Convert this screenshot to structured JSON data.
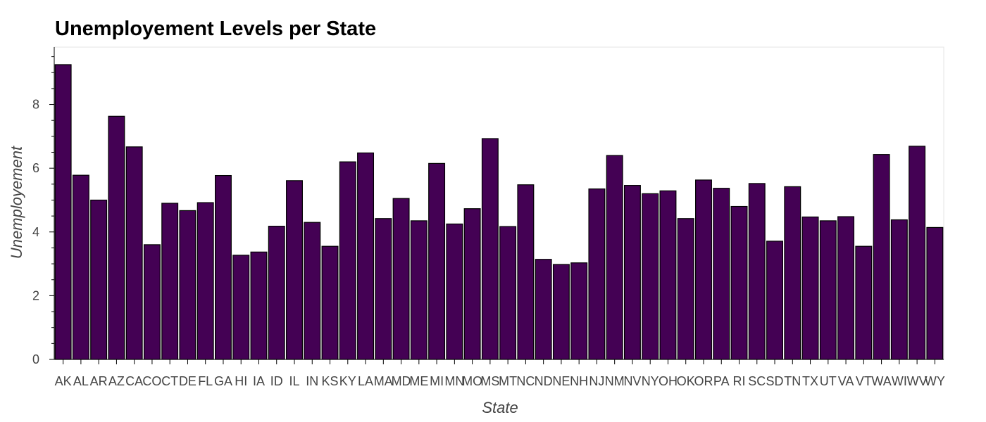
{
  "chart_data": {
    "type": "bar",
    "title": "Unemployement Levels per State",
    "xlabel": "State",
    "ylabel": "Unemployement",
    "ylim": [
      0,
      9.8
    ],
    "yticks": [
      0,
      2,
      4,
      6,
      8
    ],
    "grid": false,
    "bar_color": "#440154",
    "categories": [
      "AK",
      "AL",
      "AR",
      "AZ",
      "CA",
      "CO",
      "CT",
      "DE",
      "FL",
      "GA",
      "HI",
      "IA",
      "ID",
      "IL",
      "IN",
      "KS",
      "KY",
      "LA",
      "MA",
      "MD",
      "ME",
      "MI",
      "MN",
      "MO",
      "MS",
      "MT",
      "NC",
      "ND",
      "NE",
      "NH",
      "NJ",
      "NM",
      "NV",
      "NY",
      "OH",
      "OK",
      "OR",
      "PA",
      "RI",
      "SC",
      "SD",
      "TN",
      "TX",
      "UT",
      "VA",
      "VT",
      "WA",
      "WI",
      "WV",
      "WY"
    ],
    "values": [
      9.25,
      5.78,
      5.0,
      7.63,
      6.67,
      3.6,
      4.9,
      4.67,
      4.92,
      5.77,
      3.27,
      3.37,
      4.18,
      5.61,
      4.3,
      3.55,
      6.2,
      6.48,
      4.42,
      5.05,
      4.35,
      6.15,
      4.25,
      4.73,
      6.93,
      4.17,
      5.48,
      3.14,
      2.98,
      3.03,
      5.35,
      6.4,
      5.46,
      5.2,
      5.29,
      4.42,
      5.63,
      5.37,
      4.8,
      5.52,
      3.71,
      5.42,
      4.47,
      4.35,
      4.48,
      3.55,
      6.43,
      4.38,
      6.69,
      4.14
    ]
  }
}
